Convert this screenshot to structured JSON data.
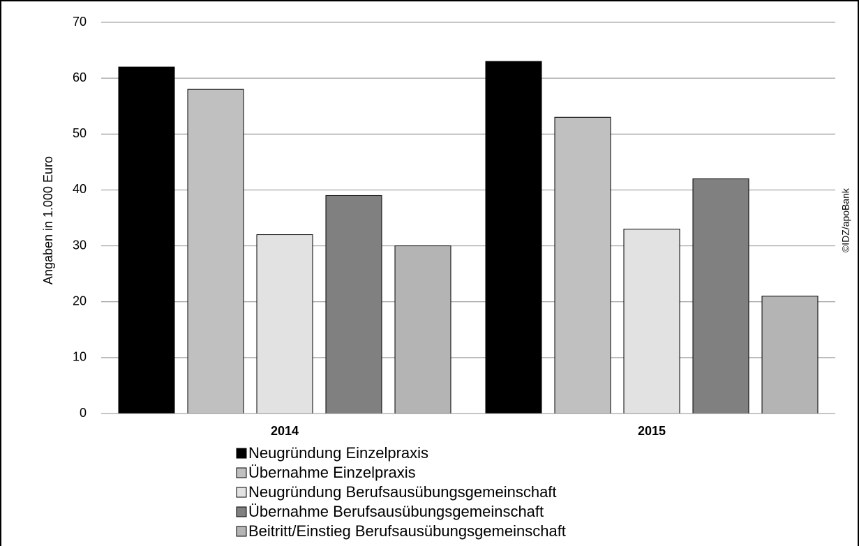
{
  "chart_data": {
    "type": "bar",
    "ylabel": "Angaben in 1.000 Euro",
    "annotation": "©IDZ/apoBank",
    "categories": [
      "2014",
      "2015"
    ],
    "series": [
      {
        "name": "Neugründung Einzelpraxis",
        "color": "#000000",
        "values": [
          62,
          63
        ]
      },
      {
        "name": "Übernahme Einzelpraxis",
        "color": "#c0c0c0",
        "values": [
          58,
          53
        ]
      },
      {
        "name": "Neugründung Berufsausübungsgemeinschaft",
        "color": "#e2e2e2",
        "values": [
          32,
          33
        ]
      },
      {
        "name": "Übernahme Berufsausübungsgemeinschaft",
        "color": "#808080",
        "values": [
          39,
          42
        ]
      },
      {
        "name": "Beitritt/Einstieg Berufsausübungsgemeinschaft",
        "color": "#b4b4b4",
        "values": [
          30,
          21
        ]
      }
    ],
    "ylim": [
      0,
      70
    ],
    "yticks": [
      0,
      10,
      20,
      30,
      40,
      50,
      60,
      70
    ],
    "grid": true
  }
}
